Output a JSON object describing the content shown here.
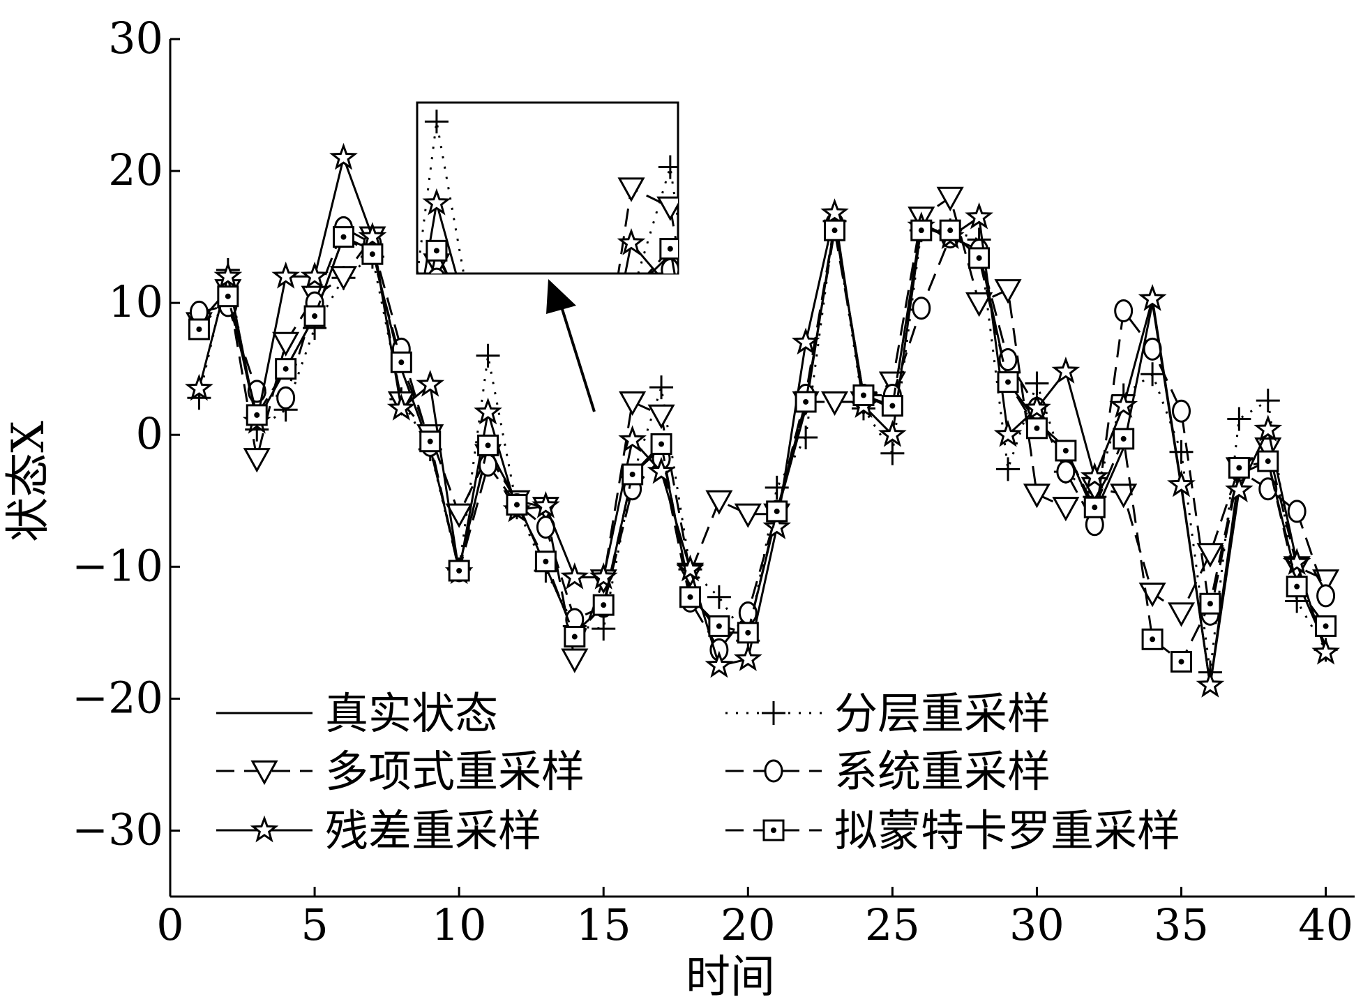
{
  "chart_data": {
    "type": "line",
    "xlabel": "时间",
    "ylabel": "状态X",
    "xlim": [
      0,
      41
    ],
    "ylim": [
      -35,
      30
    ],
    "xticks": [
      0,
      5,
      10,
      15,
      20,
      25,
      30,
      35,
      40
    ],
    "yticks": [
      30,
      20,
      10,
      0,
      -10,
      -20,
      -30
    ],
    "xtick_labels": [
      "0",
      "5",
      "10",
      "15",
      "20",
      "25",
      "30",
      "35",
      "40"
    ],
    "ytick_labels": [
      "30",
      "20",
      "10",
      "0",
      "−10",
      "−20",
      "−30"
    ],
    "grid": false,
    "legend_position": "lower-left, two columns",
    "inset": {
      "note": "zoom window with arrow pointing to data region",
      "x_range": [
        10.5,
        17.2
      ],
      "y_range": [
        -2,
        7
      ]
    },
    "x": [
      1,
      2,
      3,
      4,
      5,
      6,
      7,
      8,
      9,
      10,
      11,
      12,
      13,
      14,
      15,
      16,
      17,
      18,
      19,
      20,
      21,
      22,
      23,
      24,
      25,
      26,
      27,
      28,
      29,
      30,
      31,
      32,
      33,
      34,
      35,
      36,
      37,
      38,
      39,
      40
    ],
    "series": [
      {
        "name": "真实状态",
        "marker": "none",
        "dash": "solid",
        "values": [
          8.5,
          11,
          1,
          5,
          9,
          15,
          14,
          5,
          -1,
          -10,
          -1,
          -5,
          -10,
          -15,
          -13,
          -3,
          -1,
          -12,
          -15,
          -15,
          -6,
          2,
          16,
          3,
          2,
          16,
          15,
          14,
          4,
          1,
          -1,
          -6,
          -1,
          10,
          -4,
          -19,
          -3,
          -2,
          -11,
          -16
        ]
      },
      {
        "name": "分层重采样",
        "marker": "plus",
        "dash": "dotted",
        "values": [
          2.8,
          12.5,
          0.4,
          1.9,
          8.1,
          11.9,
          13.5,
          2.7,
          -1.1,
          -10.2,
          6,
          -5.5,
          -10.3,
          -14.5,
          -14.7,
          -3.2,
          3.6,
          -10.2,
          -12.3,
          -15.6,
          -4,
          -0.2,
          16.2,
          2,
          -1.4,
          15.5,
          15.5,
          14.8,
          -2.6,
          3.9,
          -2.8,
          -4.7,
          3,
          4.6,
          -1.3,
          -18,
          1.2,
          2.6,
          -12.6,
          -16.3
        ]
      },
      {
        "name": "多项式重采样",
        "marker": "triangle-down",
        "dash": "dashed",
        "values": [
          8.5,
          11,
          -1.8,
          7,
          10.5,
          12,
          15,
          2.5,
          0,
          -6,
          -1.5,
          -5,
          -5.5,
          -17,
          -11,
          2.5,
          1.5,
          -10.5,
          -5,
          -6,
          -6,
          2.5,
          2.5,
          2.5,
          4,
          16.5,
          18,
          10,
          11,
          -4.5,
          -5.5,
          -4,
          -4.5,
          -12,
          -13.5,
          -9,
          -2.5,
          -1,
          -10,
          -11
        ]
      },
      {
        "name": "系统重采样",
        "marker": "circle",
        "dash": "dashed",
        "values": [
          9.3,
          9.8,
          3.3,
          2.8,
          10,
          15.7,
          14.5,
          6.5,
          -0.8,
          -10.3,
          -2.3,
          -5.3,
          -7,
          -14,
          -13,
          -4.1,
          -1.8,
          -12.6,
          -16.3,
          -13.5,
          -5.8,
          3,
          16,
          3,
          3,
          9.6,
          15,
          14,
          5.7,
          2,
          -2.8,
          -6.8,
          9.4,
          6.5,
          1.8,
          -13.6,
          -2.7,
          -4.1,
          -5.8,
          -12.2
        ]
      },
      {
        "name": "残差重采样",
        "marker": "star",
        "dash": "solid",
        "values": [
          3.5,
          12,
          1,
          12,
          12,
          21,
          15,
          2,
          3.8,
          -10.4,
          1.7,
          -5.7,
          -5.4,
          -10.8,
          -10.8,
          -0.4,
          -2.8,
          -10.2,
          -17.5,
          -17,
          -7,
          7,
          16.8,
          2.2,
          0,
          15.8,
          15,
          16.5,
          0,
          2,
          4.8,
          -3.2,
          2.2,
          10.3,
          -3.8,
          -19,
          -4.2,
          0.4,
          -9.7,
          -16.5
        ]
      },
      {
        "name": "拟蒙特卡罗重采样",
        "marker": "square-dot",
        "dash": "dashed",
        "values": [
          8,
          10.5,
          1.5,
          5,
          9,
          15,
          13.7,
          5.5,
          -0.5,
          -10.3,
          -0.8,
          -5.3,
          -9.6,
          -15.3,
          -12.9,
          -3,
          -0.7,
          -12.3,
          -14.5,
          -15,
          -5.8,
          2.5,
          15.5,
          3,
          2.2,
          15.5,
          15.5,
          13.4,
          4,
          0.5,
          -1.2,
          -5.5,
          -0.3,
          -15.5,
          -17.2,
          -12.8,
          -2.5,
          -2,
          -11.5,
          -14.5
        ]
      }
    ]
  }
}
